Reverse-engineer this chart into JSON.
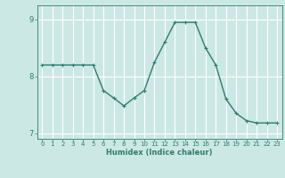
{
  "x": [
    0,
    1,
    2,
    3,
    4,
    5,
    6,
    7,
    8,
    9,
    10,
    11,
    12,
    13,
    14,
    15,
    16,
    17,
    18,
    19,
    20,
    21,
    22,
    23
  ],
  "y": [
    8.2,
    8.2,
    8.2,
    8.2,
    8.2,
    8.2,
    7.75,
    7.62,
    7.48,
    7.62,
    7.75,
    8.25,
    8.6,
    8.95,
    8.95,
    8.95,
    8.5,
    8.2,
    7.6,
    7.35,
    7.22,
    7.18,
    7.18,
    7.18
  ],
  "xlabel": "Humidex (Indice chaleur)",
  "ylim": [
    6.9,
    9.25
  ],
  "xlim": [
    -0.5,
    23.5
  ],
  "yticks": [
    7,
    8,
    9
  ],
  "xticks": [
    0,
    1,
    2,
    3,
    4,
    5,
    6,
    7,
    8,
    9,
    10,
    11,
    12,
    13,
    14,
    15,
    16,
    17,
    18,
    19,
    20,
    21,
    22,
    23
  ],
  "line_color": "#2e7d6e",
  "marker": "+",
  "bg_color": "#cce8e4",
  "grid_color": "#ffffff",
  "axis_color": "#2e7d6e",
  "tick_label_color": "#2e7d6e",
  "xlabel_color": "#2e7d6e",
  "marker_size": 3.5,
  "line_width": 1.0
}
